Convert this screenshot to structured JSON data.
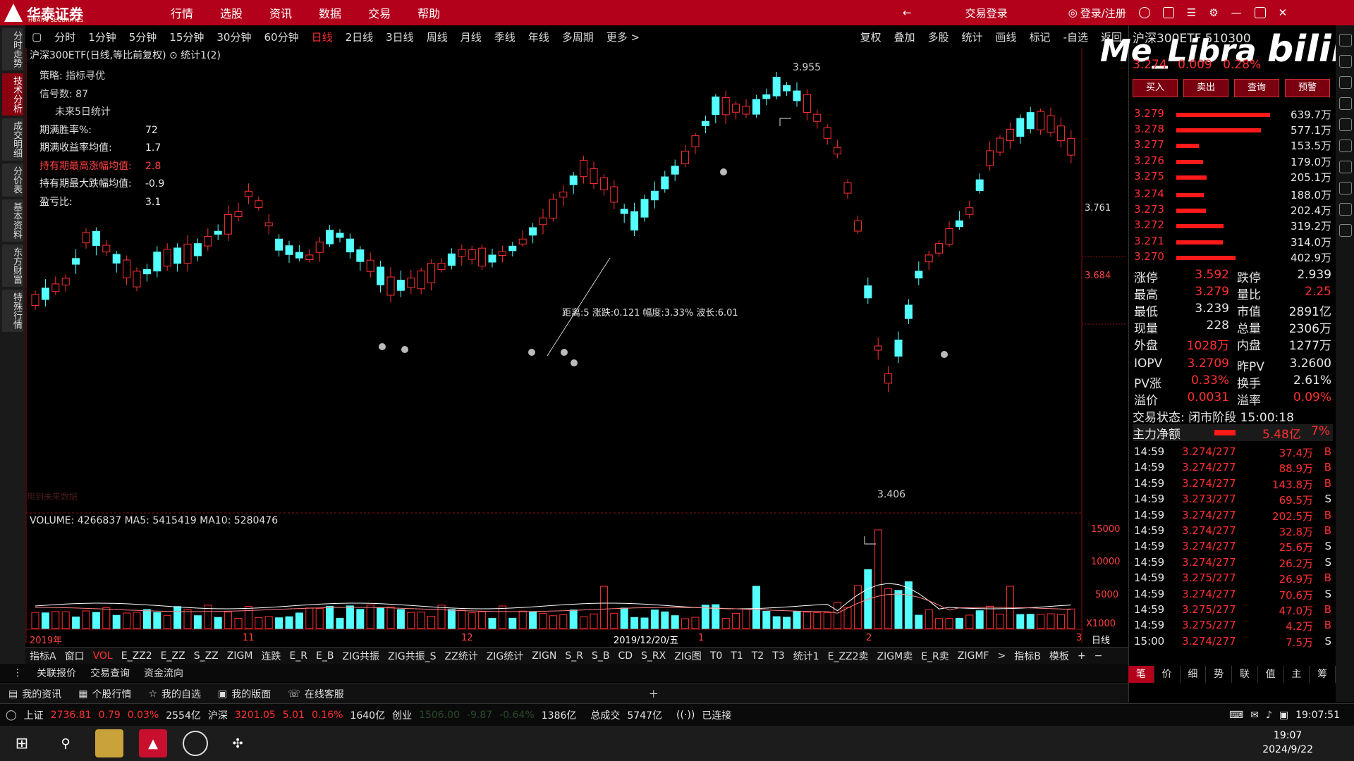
{
  "app": {
    "logo_text": "华泰证券",
    "logo_sub": "HUATAI SECURITIES",
    "menu": [
      "行情",
      "选股",
      "资讯",
      "数据",
      "交易",
      "帮助"
    ],
    "trade_login": "交易登录",
    "login_register": "登录/注册"
  },
  "left_tabs": [
    "分时走势",
    "技术分析",
    "成交明细",
    "分价表",
    "基本资料",
    "东方财富",
    "特殊行情"
  ],
  "period_bar": {
    "items": [
      "分时",
      "1分钟",
      "5分钟",
      "15分钟",
      "30分钟",
      "60分钟",
      "日线",
      "2日线",
      "3日线",
      "周线",
      "月线",
      "季线",
      "年线",
      "多周期",
      "更多 >"
    ],
    "active": "日线",
    "right_items": [
      "复权",
      "叠加",
      "多股",
      "统计",
      "画线",
      "标记",
      "-自选",
      "返回"
    ]
  },
  "chart_header": "沪深300ETF(日线,等比前复权) ⊙ 统计1(2)",
  "strategy": {
    "title": "策略: 指标寻优",
    "signals": "信号数: 87",
    "future": "未来5日统计",
    "rows": [
      {
        "k": "期满胜率%:",
        "v": "72",
        "red": false
      },
      {
        "k": "期满收益率均值:",
        "v": "1.7",
        "red": false
      },
      {
        "k": "持有期最高涨幅均值:",
        "v": "2.8",
        "red": true
      },
      {
        "k": "持有期最大跌幅均值:",
        "v": "-0.9",
        "red": false
      },
      {
        "k": "盈亏比:",
        "v": "3.1",
        "red": false
      }
    ]
  },
  "annotations": {
    "high": "3.955",
    "low": "3.406",
    "wave": "距离:5 涨跌:0.121 幅度:3.33% 波长:6.01",
    "faint": "用到未来数据",
    "price_axis": [
      "3.761",
      "3.684"
    ],
    "vol_axis": [
      "15000",
      "10000",
      "5000",
      "X1000"
    ]
  },
  "volume_header": "VOLUME: 4266837  MA5: 5415419  MA10: 5280476",
  "x_axis": {
    "labels": [
      "2019年",
      "11",
      "12",
      "2019/12/20/五",
      "1",
      "2",
      "3"
    ],
    "period": "日线"
  },
  "indicator_tabs": [
    "指标A",
    "窗口",
    "VOL",
    "E_ZZ2",
    "E_ZZ",
    "S_ZZ",
    "ZIGM",
    "连跌",
    "E_R",
    "E_B",
    "ZIG共振",
    "ZIG共振_S",
    "ZZ统计",
    "ZIG统计",
    "ZIGN",
    "S_R",
    "S_B",
    "CD",
    "S_RX",
    "ZIG图",
    "T0",
    "T1",
    "T2",
    "T3",
    "统计1",
    "E_ZZ2卖",
    "ZIGM卖",
    "E_R卖",
    "ZIGMF",
    ">",
    "指标B",
    "模板",
    "+",
    "−"
  ],
  "indicator_active": "VOL",
  "sub_tabs": [
    "关联报价",
    "交易查询",
    "资金流向"
  ],
  "bottom_bar": [
    "我的资讯",
    "个股行情",
    "我的自选",
    "我的版面",
    "在线客服"
  ],
  "status_bar": {
    "sh_label": "上证",
    "sh_value": "2736.81",
    "sh_change": "0.79",
    "sh_pct": "0.03%",
    "sh_amount": "2554亿",
    "hs_label": "沪深",
    "hs_value": "3201.05",
    "hs_change": "5.01",
    "hs_pct": "0.16%",
    "hs_amount": "1640亿",
    "cy_label": "创业",
    "cy_value": "1506.00",
    "cy_change": "-9.87",
    "cy_pct": "-0.64%",
    "cy_amount": "1386亿",
    "total_label": "总成交",
    "total_amount": "5747亿",
    "connected": "已连接",
    "time": "19:07:51"
  },
  "taskbar": {
    "time": "19:07",
    "date": "2024/9/22"
  },
  "right_panel": {
    "title": "沪深300ETF 510300",
    "price": "3.274",
    "change": "0.009",
    "pct": "0.28%",
    "watermark": "Me_Libra",
    "bili": "bilibili",
    "buttons": [
      "买入",
      "卖出",
      "查询",
      "预警"
    ],
    "asks": [
      {
        "p": "3.279",
        "q": "639.7万",
        "bar": 0.95
      },
      {
        "p": "3.278",
        "q": "577.1万",
        "bar": 0.86
      },
      {
        "p": "3.277",
        "q": "153.5万",
        "bar": 0.23
      },
      {
        "p": "3.276",
        "q": "179.0万",
        "bar": 0.27
      },
      {
        "p": "3.275",
        "q": "205.1万",
        "bar": 0.31
      }
    ],
    "bids": [
      {
        "p": "3.274",
        "q": "188.0万",
        "bar": 0.28
      },
      {
        "p": "3.273",
        "q": "202.4万",
        "bar": 0.3
      },
      {
        "p": "3.272",
        "q": "319.2万",
        "bar": 0.48
      },
      {
        "p": "3.271",
        "q": "314.0万",
        "bar": 0.47
      },
      {
        "p": "3.270",
        "q": "402.9万",
        "bar": 0.6
      }
    ],
    "stats": [
      {
        "k1": "涨停",
        "v1": "3.592",
        "c1": "red",
        "k2": "跌停",
        "v2": "2.939",
        "c2": "white"
      },
      {
        "k1": "最高",
        "v1": "3.279",
        "c1": "red",
        "k2": "量比",
        "v2": "2.25",
        "c2": "red"
      },
      {
        "k1": "最低",
        "v1": "3.239",
        "c1": "white",
        "k2": "市值",
        "v2": "2891亿",
        "c2": "white"
      },
      {
        "k1": "现量",
        "v1": "228",
        "c1": "white",
        "k2": "总量",
        "v2": "2306万",
        "c2": "white"
      },
      {
        "k1": "外盘",
        "v1": "1028万",
        "c1": "red",
        "k2": "内盘",
        "v2": "1277万",
        "c2": "white"
      },
      {
        "k1": "IOPV",
        "v1": "3.2709",
        "c1": "red",
        "k2": "昨PV",
        "v2": "3.2600",
        "c2": "white"
      },
      {
        "k1": "PV涨",
        "v1": "0.33%",
        "c1": "red",
        "k2": "换手",
        "v2": "2.61%",
        "c2": "white"
      },
      {
        "k1": "溢价",
        "v1": "0.0031",
        "c1": "red",
        "k2": "溢率",
        "v2": "0.09%",
        "c2": "red"
      }
    ],
    "trade_state": "交易状态: 闭市阶段 15:00:18",
    "main_flow_label": "主力净额",
    "main_flow_value": "5.48亿",
    "main_flow_pct": "7%",
    "ticks": [
      {
        "t": "14:59",
        "p": "3.274/277",
        "v": "37.4万",
        "bs": "B"
      },
      {
        "t": "14:59",
        "p": "3.274/277",
        "v": "88.9万",
        "bs": "B"
      },
      {
        "t": "14:59",
        "p": "3.274/277",
        "v": "143.8万",
        "bs": "B"
      },
      {
        "t": "14:59",
        "p": "3.273/277",
        "v": "69.5万",
        "bs": "S"
      },
      {
        "t": "14:59",
        "p": "3.274/277",
        "v": "202.5万",
        "bs": "B"
      },
      {
        "t": "14:59",
        "p": "3.274/277",
        "v": "32.8万",
        "bs": "B"
      },
      {
        "t": "14:59",
        "p": "3.274/277",
        "v": "25.6万",
        "bs": "S"
      },
      {
        "t": "14:59",
        "p": "3.274/277",
        "v": "26.2万",
        "bs": "S"
      },
      {
        "t": "14:59",
        "p": "3.275/277",
        "v": "26.9万",
        "bs": "B"
      },
      {
        "t": "14:59",
        "p": "3.274/277",
        "v": "70.6万",
        "bs": "S"
      },
      {
        "t": "14:59",
        "p": "3.275/277",
        "v": "47.0万",
        "bs": "B"
      },
      {
        "t": "14:59",
        "p": "3.275/277",
        "v": "4.2万",
        "bs": "B"
      },
      {
        "t": "15:00",
        "p": "3.274/277",
        "v": "7.5万",
        "bs": "S"
      }
    ],
    "bottom_tabs": [
      "笔",
      "价",
      "细",
      "势",
      "联",
      "值",
      "主",
      "筹"
    ]
  },
  "colors": {
    "up": "#ff3030",
    "down": "#54ffff",
    "brand": "#b3001b"
  }
}
